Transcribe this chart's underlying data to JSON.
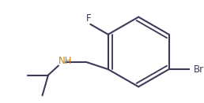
{
  "bg_color": "#ffffff",
  "bond_color": "#3c3c5a",
  "F_color": "#3c3c5a",
  "Br_color": "#3c3c5a",
  "NH_color": "#c8820a",
  "line_width": 1.5,
  "F_label": "F",
  "Br_label": "Br",
  "NH_label": "NH",
  "font_size": 8.5
}
